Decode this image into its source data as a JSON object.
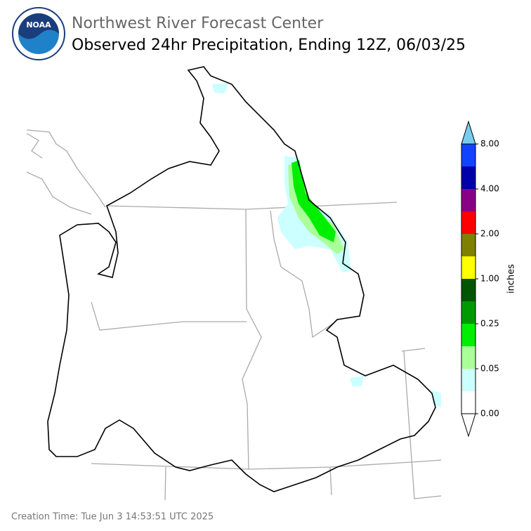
{
  "header": {
    "agency": "Northwest River Forecast Center",
    "title": "Observed 24hr Precipitation, Ending 12Z, 06/03/25",
    "logo_text": "NOAA"
  },
  "colorbar": {
    "unit": "inches",
    "labels": [
      "0.00",
      "0.05",
      "0.25",
      "1.00",
      "2.00",
      "4.00",
      "8.00"
    ],
    "colors": [
      "#ffffff",
      "#ccffff",
      "#aaff99",
      "#00ee00",
      "#009900",
      "#005500",
      "#ffff00",
      "#808000",
      "#ff0000",
      "#880088",
      "#0000aa",
      "#1144ff"
    ],
    "under_color": "#ffffff",
    "over_color": "#77ccee"
  },
  "footer": {
    "creation_time": "Creation Time: Tue Jun 3 14:53:51 UTC 2025"
  }
}
